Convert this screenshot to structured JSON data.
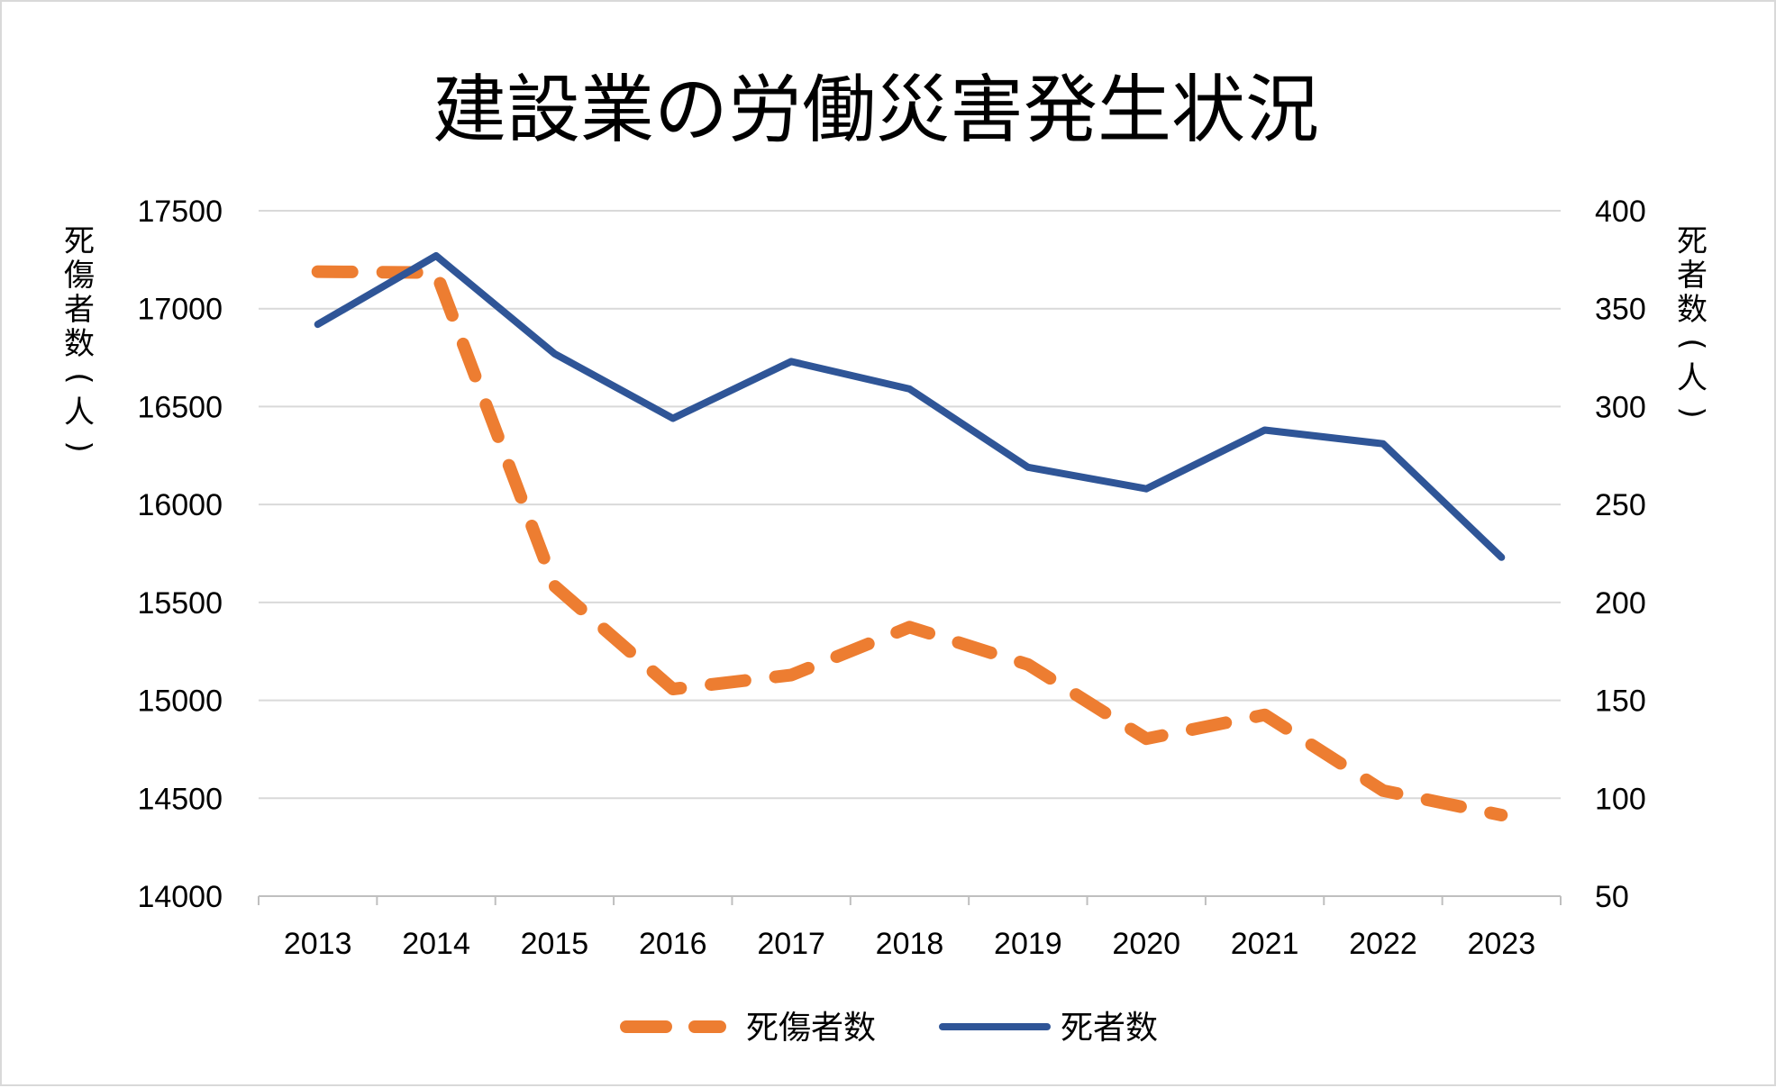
{
  "chart_data": {
    "type": "line",
    "title": "建設業の労働災害発生状況",
    "categories": [
      "2013",
      "2014",
      "2015",
      "2016",
      "2017",
      "2018",
      "2019",
      "2020",
      "2021",
      "2022",
      "2023"
    ],
    "y_left": {
      "label": "死傷者数(人)",
      "range": [
        14000,
        17500
      ],
      "ticks": [
        17500,
        17000,
        16500,
        16000,
        15500,
        15000,
        14500,
        14000
      ]
    },
    "y_right": {
      "label": "死者数(人)",
      "range": [
        50,
        400
      ],
      "ticks": [
        400,
        350,
        300,
        250,
        200,
        150,
        100,
        50
      ]
    },
    "grid": true,
    "legend_position": "bottom",
    "series": [
      {
        "name": "死傷者数",
        "axis": "left",
        "style": "dashed",
        "color": "#ED7D31",
        "values": [
          17189,
          17184,
          15584,
          15058,
          15129,
          15374,
          15183,
          14804,
          14926,
          14539,
          14414
        ]
      },
      {
        "name": "死者数",
        "axis": "right",
        "style": "solid",
        "color": "#2F5597",
        "values": [
          342,
          377,
          327,
          294,
          323,
          309,
          269,
          258,
          288,
          281,
          223
        ]
      }
    ]
  }
}
